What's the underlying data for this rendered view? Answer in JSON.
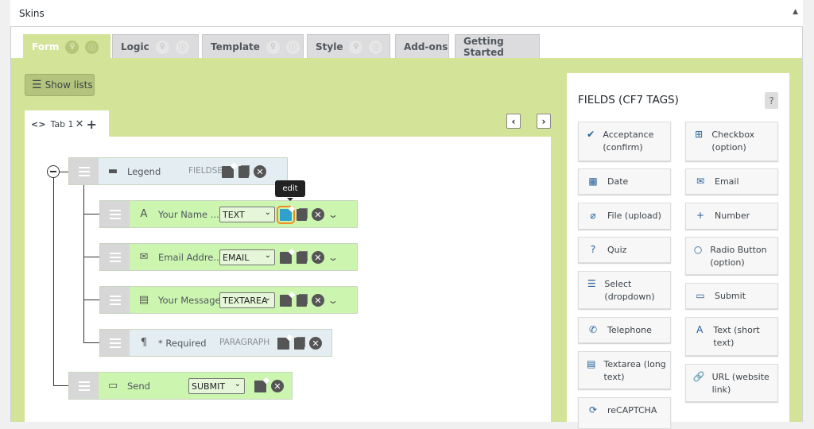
{
  "header": {
    "title": "Skins"
  },
  "tabs": [
    {
      "label": "Form",
      "active": true,
      "icons": true
    },
    {
      "label": "Logic",
      "icons": true
    },
    {
      "label": "Template",
      "icons": true
    },
    {
      "label": "Style",
      "icons": true
    },
    {
      "label": "Add-ons",
      "icons": false
    },
    {
      "label": "Getting Started",
      "icons": false
    }
  ],
  "show_lists": "Show lists",
  "form_tab": {
    "label": "Tab 1"
  },
  "tooltip": "edit",
  "rows": [
    {
      "icon": "folder-icon",
      "glyph": "▬",
      "label": "Legend",
      "type": "FIELDSET",
      "kind": "fieldset"
    },
    {
      "icon": "text-icon",
      "glyph": "A",
      "label": "Your Name ...",
      "select": "TEXT",
      "kind": "field"
    },
    {
      "icon": "email-icon",
      "glyph": "✉",
      "label": "Email Addre...",
      "select": "EMAIL",
      "kind": "field"
    },
    {
      "icon": "textarea-icon",
      "glyph": "▤",
      "label": "Your Message",
      "select": "TEXTAREA",
      "kind": "field"
    },
    {
      "icon": "paragraph-icon",
      "glyph": "¶",
      "label": "* Required",
      "type": "PARAGRAPH",
      "kind": "paragraph"
    },
    {
      "icon": "submit-icon",
      "glyph": "▭",
      "label": "Send",
      "select": "SUBMIT",
      "kind": "submit"
    }
  ],
  "fields_panel": {
    "title": "FIELDS (CF7 TAGS)",
    "help": "?",
    "left": [
      {
        "icon": "check-circle-icon",
        "glyph": "✔",
        "label": "Acceptance (confirm)"
      },
      {
        "icon": "calendar-icon",
        "glyph": "▦",
        "label": "Date"
      },
      {
        "icon": "paperclip-icon",
        "glyph": "⌀",
        "label": "File (upload)"
      },
      {
        "icon": "question-icon",
        "glyph": "?",
        "label": "Quiz"
      },
      {
        "icon": "list-icon",
        "glyph": "☰",
        "label": "Select (dropdown)"
      },
      {
        "icon": "phone-icon",
        "glyph": "✆",
        "label": "Telephone"
      },
      {
        "icon": "textarea-icon",
        "glyph": "▤",
        "label": "Textarea (long text)"
      },
      {
        "icon": "refresh-icon",
        "glyph": "⟳",
        "label": "reCAPTCHA"
      }
    ],
    "right": [
      {
        "icon": "checkbox-icon",
        "glyph": "⊞",
        "label": "Checkbox (option)"
      },
      {
        "icon": "envelope-icon",
        "glyph": "✉",
        "label": "Email"
      },
      {
        "icon": "plus-icon",
        "glyph": "+",
        "label": "Number"
      },
      {
        "icon": "radio-icon",
        "glyph": "○",
        "label": "Radio Button (option)"
      },
      {
        "icon": "button-icon",
        "glyph": "▭",
        "label": "Submit"
      },
      {
        "icon": "text-icon",
        "glyph": "A",
        "label": "Text (short text)"
      },
      {
        "icon": "link-icon",
        "glyph": "🔗",
        "label": "URL (website link)"
      }
    ]
  }
}
